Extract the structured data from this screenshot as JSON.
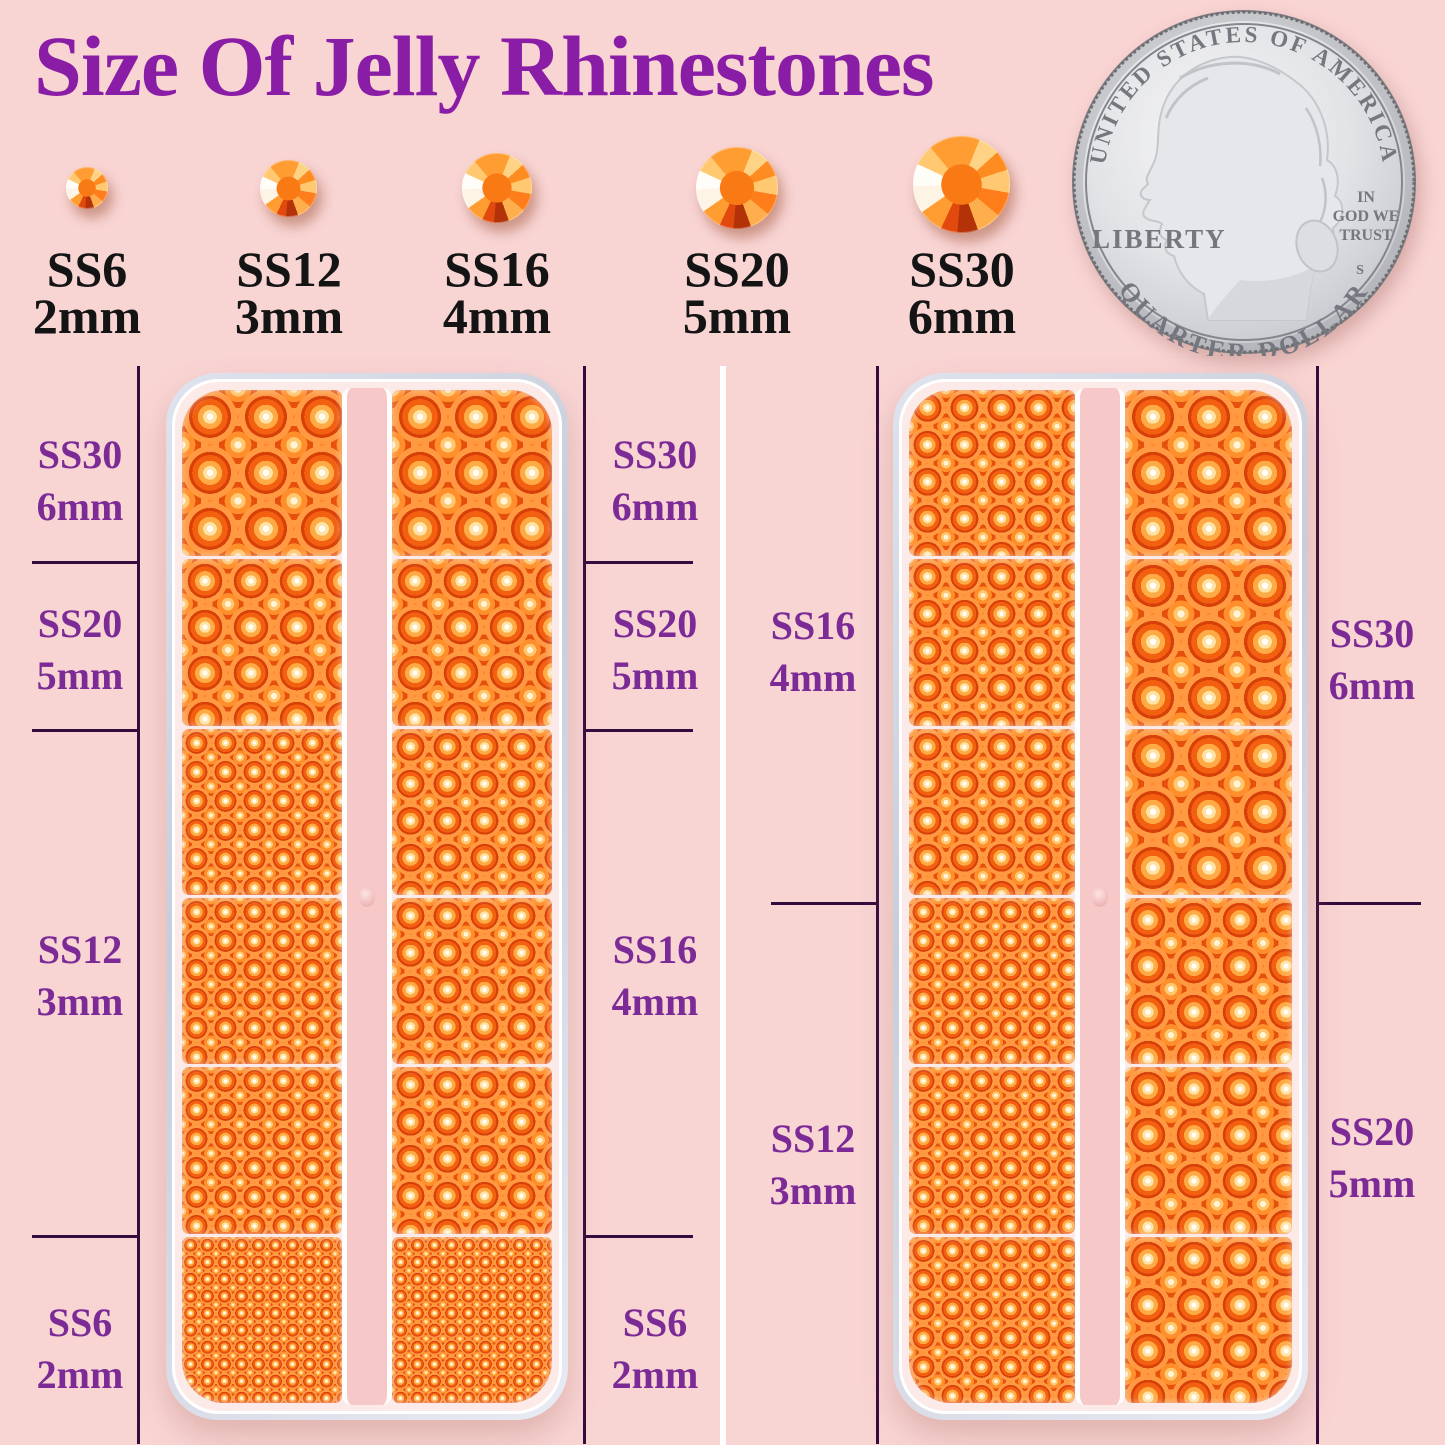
{
  "title": {
    "text": "Size Of Jelly Rhinestones"
  },
  "size_chart": {
    "items": [
      {
        "code": "SS6",
        "size": "2mm"
      },
      {
        "code": "SS12",
        "size": "3mm"
      },
      {
        "code": "SS16",
        "size": "4mm"
      },
      {
        "code": "SS20",
        "size": "5mm"
      },
      {
        "code": "SS30",
        "size": "6mm"
      }
    ]
  },
  "coin": {
    "top_text": "UNITED STATES OF AMERICA",
    "liberty": "LIBERTY",
    "motto": [
      "IN",
      "GOD WE",
      "TRUST"
    ],
    "mint_mark": "S",
    "bottom_text": "QUARTER DOLLAR"
  },
  "left_tray": {
    "left_labels": [
      {
        "code": "SS30",
        "size": "6mm"
      },
      {
        "code": "SS20",
        "size": "5mm"
      },
      {
        "code": "SS12",
        "size": "3mm"
      },
      {
        "code": "SS6",
        "size": "2mm"
      }
    ],
    "right_labels": [
      {
        "code": "SS30",
        "size": "6mm"
      },
      {
        "code": "SS20",
        "size": "5mm"
      },
      {
        "code": "SS16",
        "size": "4mm"
      },
      {
        "code": "SS6",
        "size": "2mm"
      }
    ],
    "columns": [
      [
        "SS30",
        "SS20",
        "SS12",
        "SS12",
        "SS12",
        "SS6"
      ],
      [
        "SS30",
        "SS20",
        "SS16",
        "SS16",
        "SS16",
        "SS6"
      ]
    ]
  },
  "right_tray": {
    "left_labels": [
      {
        "code": "SS16",
        "size": "4mm"
      },
      {
        "code": "SS12",
        "size": "3mm"
      }
    ],
    "right_labels": [
      {
        "code": "SS30",
        "size": "6mm"
      },
      {
        "code": "SS20",
        "size": "5mm"
      }
    ],
    "columns": [
      [
        "SS16",
        "SS16",
        "SS16",
        "SS12",
        "SS12",
        "SS12"
      ],
      [
        "SS30",
        "SS30",
        "SS30",
        "SS20",
        "SS20",
        "SS20"
      ]
    ]
  },
  "colors": {
    "background": "#f8d4d3",
    "title_purple": "#8a1da6",
    "label_purple": "#7b2a96",
    "label_black": "#141414",
    "guide_line": "#330d3d",
    "stone_orange": "#ff7e1f",
    "tray_edge": "#d9dde9",
    "tray_divider_pink": "#f6c8c8",
    "coin_silver": "#d8d9dd"
  }
}
